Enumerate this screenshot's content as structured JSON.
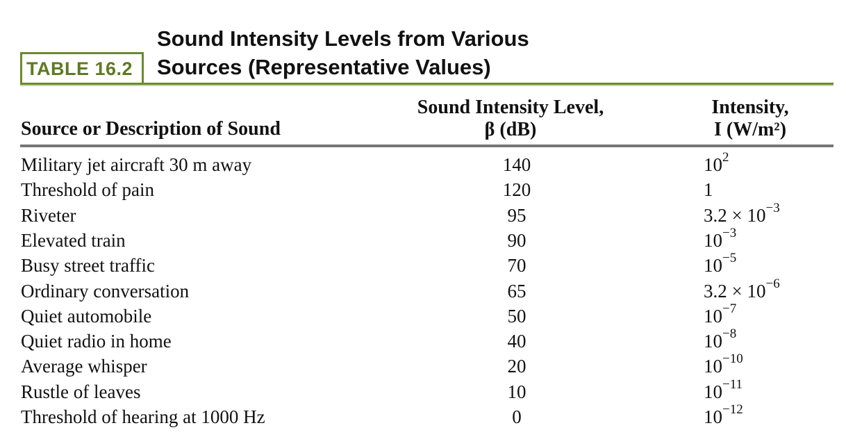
{
  "table_label": "TABLE 16.2",
  "title": {
    "line1": "Sound Intensity Levels from Various",
    "line2": "Sources (Representative Values)"
  },
  "headers": {
    "source": "Source or Description of Sound",
    "level_line1": "Sound Intensity Level,",
    "level_line2": "β (dB)",
    "intensity_line1": "Intensity,",
    "intensity_line2": "I (W/m²)"
  },
  "rows": [
    {
      "source": "Military jet aircraft 30 m away",
      "level": "140",
      "int_base": "10",
      "int_exp": "2"
    },
    {
      "source": "Threshold of pain",
      "level": "120",
      "int_base": "1",
      "int_exp": ""
    },
    {
      "source": "Riveter",
      "level": "95",
      "int_base": "3.2 × 10",
      "int_exp": "−3"
    },
    {
      "source": "Elevated train",
      "level": "90",
      "int_base": "10",
      "int_exp": "−3"
    },
    {
      "source": "Busy street traffic",
      "level": "70",
      "int_base": "10",
      "int_exp": "−5"
    },
    {
      "source": "Ordinary conversation",
      "level": "65",
      "int_base": "3.2 × 10",
      "int_exp": "−6"
    },
    {
      "source": "Quiet automobile",
      "level": "50",
      "int_base": "10",
      "int_exp": "−7"
    },
    {
      "source": "Quiet radio in home",
      "level": "40",
      "int_base": "10",
      "int_exp": "−8"
    },
    {
      "source": "Average whisper",
      "level": "20",
      "int_base": "10",
      "int_exp": "−10"
    },
    {
      "source": "Rustle of leaves",
      "level": "10",
      "int_base": "10",
      "int_exp": "−11"
    },
    {
      "source": "Threshold of hearing at 1000 Hz",
      "level": "0",
      "int_base": "10",
      "int_exp": "−12"
    }
  ],
  "colors": {
    "accent_green": "#6b8a2c",
    "rule_gray": "#777777"
  }
}
